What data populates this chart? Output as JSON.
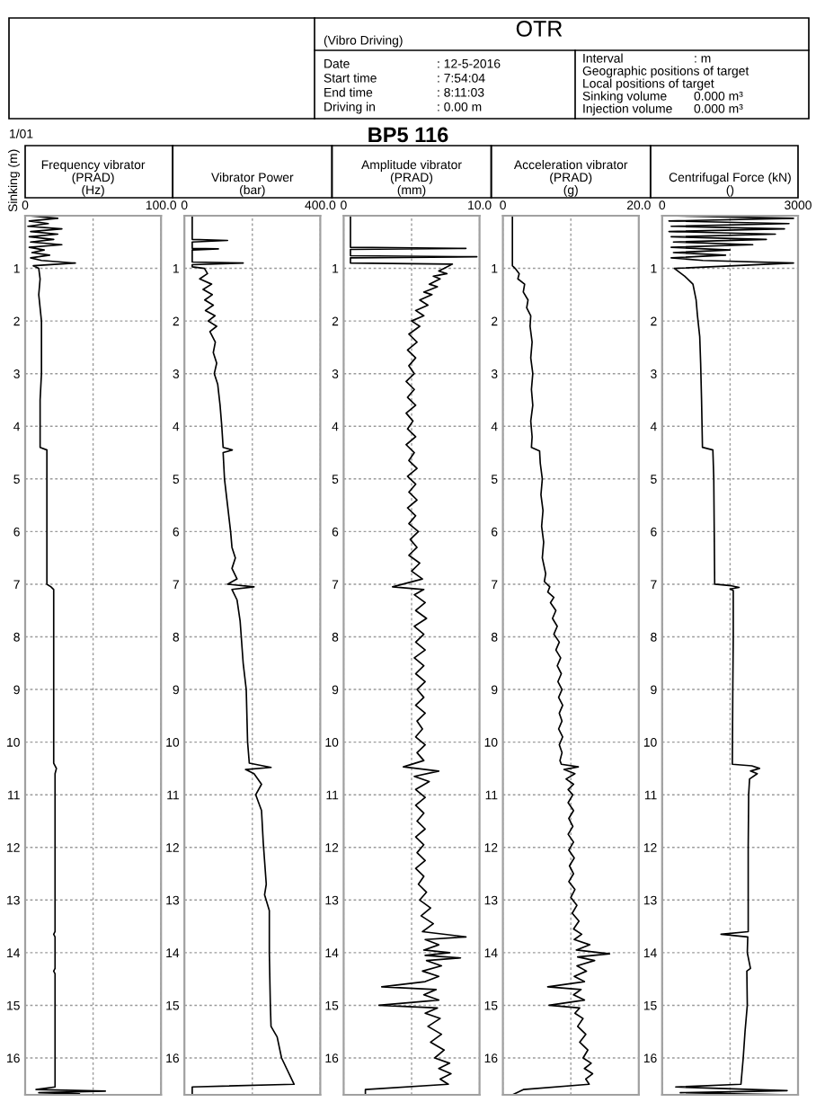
{
  "chart_data": [
    {
      "type": "line",
      "annotations": [
        "(Vibro Driving)",
        "OTR",
        "Date",
        ": 12-5-2016",
        "Start time",
        ": 7:54:04",
        "End time",
        ": 8:11:03",
        "Driving in",
        ": 0.00 m",
        "Interval",
        ": m",
        "Geographic positions of target",
        "Local positions of target",
        "Sinking volume",
        "0.000 m³",
        "Injection volume",
        "0.000 m³",
        "1/01",
        "BP5 116"
      ],
      "xlabel": "Frequency vibrator\n(PRAD)\n(Hz)",
      "ylabel": "Sinking (m)",
      "xlim": [
        0,
        100
      ],
      "xticks": [
        0,
        {
          "value": 50,
          "label": null
        },
        {
          "value": 100,
          "label": "100.0"
        }
      ],
      "ylim": [
        16.7,
        0
      ],
      "yticks": [
        1,
        2,
        3,
        4,
        5,
        6,
        7,
        8,
        9,
        10,
        11,
        12,
        13,
        14,
        15,
        16
      ],
      "grid": true,
      "series": [
        {
          "color": "#000000",
          "x": [
            2,
            24,
            3,
            17,
            2,
            27,
            4,
            24,
            3,
            21,
            4,
            27,
            3,
            14,
            5,
            18,
            4,
            12,
            37,
            6,
            10,
            11,
            10,
            12,
            12,
            11,
            11,
            16,
            16,
            16,
            19,
            21,
            21,
            21,
            21,
            23,
            22,
            22,
            21,
            22,
            22,
            21,
            22,
            22,
            8,
            59,
            10,
            40,
            8
          ],
          "values": [
            0,
            0.05,
            0.1,
            0.15,
            0.2,
            0.25,
            0.3,
            0.35,
            0.4,
            0.45,
            0.5,
            0.55,
            0.6,
            0.65,
            0.7,
            0.75,
            0.8,
            0.85,
            0.9,
            0.95,
            1.0,
            1.2,
            1.5,
            2.0,
            3.0,
            3.5,
            4.4,
            4.45,
            5.5,
            7.0,
            7.05,
            7.1,
            8.0,
            9.0,
            10.4,
            10.5,
            10.6,
            13.6,
            13.65,
            13.7,
            14.3,
            14.35,
            14.4,
            16.55,
            16.6,
            16.63,
            16.66,
            16.68,
            16.7
          ]
        }
      ]
    },
    {
      "type": "line",
      "xlabel": "Vibrator Power\n(bar)",
      "xlim": [
        0,
        400
      ],
      "xticks": [
        0,
        {
          "value": 200,
          "label": null
        },
        {
          "value": 400,
          "label": "400.0"
        }
      ],
      "ylim": [
        16.7,
        0
      ],
      "yticks": [
        1,
        2,
        3,
        4,
        5,
        6,
        7,
        8,
        9,
        10,
        11,
        12,
        13,
        14,
        15,
        16
      ],
      "grid": true,
      "series": [
        {
          "color": "#000000",
          "x": [
            23,
            23,
            127,
            23,
            23,
            100,
            23,
            23,
            173,
            23,
            23,
            59,
            68,
            45,
            80,
            55,
            82,
            60,
            85,
            62,
            90,
            70,
            95,
            75,
            91,
            85,
            95,
            88,
            98,
            105,
            110,
            114,
            141,
            114,
            118,
            127,
            136,
            140,
            150,
            140,
            155,
            127,
            205,
            140,
            155,
            164,
            173,
            182,
            186,
            191,
            255,
            180,
            205,
            227,
            210,
            227,
            232,
            241,
            236,
            250,
            250,
            253,
            255,
            273,
            286,
            323,
            23,
            23
          ],
          "values": [
            0,
            0.45,
            0.47,
            0.5,
            0.62,
            0.63,
            0.65,
            0.88,
            0.9,
            0.93,
            0.97,
            1.0,
            1.1,
            1.2,
            1.3,
            1.4,
            1.5,
            1.6,
            1.7,
            1.8,
            1.9,
            2.0,
            2.1,
            2.2,
            2.4,
            2.6,
            2.8,
            3.0,
            3.2,
            3.6,
            4.0,
            4.4,
            4.45,
            4.5,
            5.0,
            5.5,
            6.0,
            6.3,
            6.5,
            6.7,
            6.9,
            7.0,
            7.05,
            7.1,
            7.3,
            7.7,
            8.5,
            9.0,
            10.0,
            10.4,
            10.48,
            10.52,
            10.6,
            10.8,
            11.0,
            11.3,
            11.9,
            12.7,
            12.9,
            13.2,
            14.0,
            15.0,
            15.4,
            15.6,
            16.0,
            16.5,
            16.55,
            16.7
          ]
        }
      ]
    },
    {
      "type": "line",
      "xlabel": "Amplitude vibrator\n(PRAD)\n(mm)",
      "xlim": [
        0,
        10
      ],
      "xticks": [
        0,
        {
          "value": 5,
          "label": null
        },
        {
          "value": 10,
          "label": "10.0"
        }
      ],
      "ylim": [
        16.7,
        0
      ],
      "yticks": [
        1,
        2,
        3,
        4,
        5,
        6,
        7,
        8,
        9,
        10,
        11,
        12,
        13,
        14,
        15,
        16
      ],
      "grid": true,
      "series": [
        {
          "color": "#000000",
          "x": [
            0.5,
            0.5,
            9.0,
            0.5,
            0.5,
            9.8,
            0.5,
            0.5,
            8.0,
            7.4,
            7.0,
            7.6,
            6.6,
            7.1,
            6.3,
            6.9,
            5.9,
            6.5,
            5.6,
            6.2,
            5.3,
            5.9,
            5.0,
            5.6,
            4.8,
            5.4,
            4.7,
            5.3,
            4.8,
            5.2,
            4.6,
            5.2,
            4.7,
            5.3,
            4.6,
            5.1,
            4.7,
            5.3,
            4.6,
            5.2,
            4.8,
            5.4,
            4.7,
            5.3,
            4.8,
            5.4,
            4.7,
            5.3,
            4.8,
            5.5,
            4.9,
            5.4,
            4.8,
            5.6,
            5.0,
            5.8,
            3.6,
            5.9,
            5.2,
            6.0,
            5.3,
            6.1,
            5.2,
            5.9,
            5.3,
            6.0,
            5.2,
            5.9,
            5.3,
            6.0,
            5.4,
            5.9,
            5.3,
            6.0,
            5.4,
            5.8,
            5.3,
            6.0,
            5.4,
            5.9,
            4.4,
            7.0,
            5.2,
            6.3,
            5.3,
            6.0,
            5.3,
            5.9,
            5.4,
            6.0,
            5.3,
            5.9,
            5.4,
            6.0,
            5.3,
            5.9,
            5.5,
            6.1,
            5.6,
            6.4,
            5.7,
            6.6,
            5.8,
            9.0,
            6.0,
            7.0,
            5.9,
            7.8,
            6.0,
            8.6,
            6.1,
            7.2,
            5.8,
            7.0,
            6.0,
            2.8,
            6.8,
            5.9,
            7.0,
            2.6,
            6.9,
            6.0,
            7.1,
            6.2,
            7.2,
            6.4,
            7.4,
            6.7,
            7.8,
            7.0,
            7.9,
            7.1,
            7.7,
            1.6,
            1.6
          ],
          "values": [
            0,
            0.6,
            0.62,
            0.64,
            0.76,
            0.78,
            0.8,
            0.9,
            0.92,
            1.0,
            1.05,
            1.1,
            1.15,
            1.2,
            1.3,
            1.35,
            1.45,
            1.5,
            1.6,
            1.7,
            1.8,
            1.9,
            2.0,
            2.1,
            2.25,
            2.4,
            2.55,
            2.7,
            2.85,
            3.0,
            3.15,
            3.3,
            3.45,
            3.6,
            3.75,
            3.9,
            4.05,
            4.2,
            4.35,
            4.5,
            4.65,
            4.8,
            4.95,
            5.1,
            5.25,
            5.4,
            5.55,
            5.7,
            5.85,
            6.0,
            6.15,
            6.3,
            6.45,
            6.6,
            6.75,
            6.9,
            7.05,
            7.1,
            7.2,
            7.35,
            7.5,
            7.65,
            7.8,
            7.95,
            8.1,
            8.25,
            8.4,
            8.55,
            8.7,
            8.85,
            9.0,
            9.15,
            9.3,
            9.45,
            9.6,
            9.75,
            9.9,
            10.05,
            10.2,
            10.35,
            10.47,
            10.55,
            10.65,
            10.75,
            10.9,
            11.05,
            11.2,
            11.35,
            11.5,
            11.65,
            11.8,
            11.95,
            12.1,
            12.25,
            12.4,
            12.55,
            12.7,
            12.85,
            13.0,
            13.15,
            13.3,
            13.45,
            13.6,
            13.7,
            13.75,
            13.85,
            13.95,
            14.0,
            14.05,
            14.1,
            14.15,
            14.25,
            14.35,
            14.45,
            14.55,
            14.65,
            14.7,
            14.8,
            14.9,
            15.0,
            15.05,
            15.15,
            15.25,
            15.4,
            15.55,
            15.7,
            15.85,
            16.0,
            16.1,
            16.2,
            16.3,
            16.4,
            16.5,
            16.6,
            16.7
          ]
        }
      ]
    },
    {
      "type": "line",
      "xlabel": "Acceleration vibrator\n(PRAD)\n(g)",
      "xlim": [
        0,
        20
      ],
      "xticks": [
        0,
        {
          "value": 10,
          "label": null
        },
        {
          "value": 20,
          "label": "20.0"
        }
      ],
      "ylim": [
        16.7,
        0
      ],
      "yticks": [
        1,
        2,
        3,
        4,
        5,
        6,
        7,
        8,
        9,
        10,
        11,
        12,
        13,
        14,
        15,
        16
      ],
      "grid": true,
      "series": [
        {
          "color": "#000000",
          "x": [
            1.4,
            1.4,
            1.8,
            2.4,
            2.2,
            3.2,
            3.0,
            3.7,
            3.5,
            4.1,
            4.0,
            4.3,
            4.1,
            4.4,
            4.2,
            4.4,
            4.1,
            4.3,
            4.2,
            5.4,
            5.5,
            5.8,
            5.6,
            5.9,
            5.7,
            6.0,
            5.8,
            6.3,
            6.1,
            6.9,
            6.6,
            7.5,
            7.0,
            7.8,
            7.3,
            8.0,
            7.5,
            8.3,
            7.8,
            8.5,
            8.0,
            8.6,
            8.1,
            8.7,
            8.2,
            8.8,
            8.3,
            8.7,
            8.2,
            8.8,
            8.3,
            8.7,
            8.4,
            8.6,
            11.1,
            9.0,
            10.6,
            9.3,
            10.4,
            9.6,
            10.3,
            9.6,
            10.4,
            9.7,
            10.3,
            9.6,
            10.4,
            9.7,
            10.5,
            9.8,
            10.4,
            9.7,
            10.6,
            10.0,
            10.9,
            10.2,
            11.2,
            10.4,
            11.6,
            10.5,
            12.8,
            10.8,
            15.7,
            11.0,
            13.5,
            10.9,
            12.3,
            10.5,
            12.0,
            6.6,
            11.5,
            10.4,
            12.0,
            6.8,
            11.3,
            10.6,
            11.8,
            11.0,
            12.2,
            11.3,
            12.5,
            11.8,
            13.0,
            12.0,
            13.2,
            12.2,
            12.7,
            3.0,
            1.4
          ],
          "values": [
            0,
            0.95,
            1.0,
            1.1,
            1.2,
            1.3,
            1.45,
            1.6,
            1.75,
            1.9,
            2.1,
            2.4,
            2.7,
            3.0,
            3.3,
            3.6,
            3.9,
            4.2,
            4.4,
            4.47,
            4.7,
            5.0,
            5.3,
            5.6,
            5.9,
            6.2,
            6.5,
            6.8,
            6.95,
            7.05,
            7.15,
            7.25,
            7.35,
            7.5,
            7.65,
            7.8,
            7.95,
            8.1,
            8.25,
            8.4,
            8.55,
            8.7,
            8.85,
            9.0,
            9.15,
            9.3,
            9.45,
            9.6,
            9.75,
            9.9,
            10.05,
            10.2,
            10.35,
            10.42,
            10.47,
            10.52,
            10.6,
            10.7,
            10.8,
            10.9,
            11.0,
            11.15,
            11.3,
            11.45,
            11.6,
            11.75,
            11.9,
            12.05,
            12.2,
            12.35,
            12.5,
            12.65,
            12.8,
            12.95,
            13.1,
            13.25,
            13.4,
            13.55,
            13.65,
            13.75,
            13.85,
            13.95,
            14.02,
            14.08,
            14.15,
            14.25,
            14.35,
            14.45,
            14.55,
            14.65,
            14.7,
            14.8,
            14.9,
            15.0,
            15.05,
            15.15,
            15.25,
            15.4,
            15.55,
            15.7,
            15.85,
            16.0,
            16.1,
            16.2,
            16.3,
            16.4,
            16.5,
            16.6,
            16.7
          ]
        }
      ]
    },
    {
      "type": "line",
      "xlabel": "Centrifugal Force (kN)\n()",
      "xlim": [
        0,
        3000
      ],
      "xticks": [
        0,
        {
          "value": 1500,
          "label": null
        },
        3000
      ],
      "ylim": [
        16.7,
        0
      ],
      "yticks": [
        1,
        2,
        3,
        4,
        5,
        6,
        7,
        8,
        9,
        10,
        11,
        12,
        13,
        14,
        15,
        16
      ],
      "grid": true,
      "series": [
        {
          "color": "#000000",
          "x": [
            100,
            2900,
            150,
            2800,
            200,
            2700,
            150,
            2500,
            200,
            2300,
            250,
            2000,
            200,
            1500,
            250,
            1400,
            200,
            900,
            2900,
            270,
            500,
            680,
            750,
            780,
            830,
            850,
            870,
            890,
            1120,
            1140,
            1150,
            1160,
            1530,
            1700,
            1500,
            1570,
            1570,
            1560,
            1550,
            1980,
            2150,
            1950,
            2100,
            1930,
            1910,
            1900,
            1900,
            1300,
            1890,
            1880,
            1950,
            1870,
            1880,
            1830,
            1790,
            1740,
            300,
            2760,
            400,
            2900
          ],
          "values": [
            0,
            0.05,
            0.1,
            0.15,
            0.2,
            0.25,
            0.3,
            0.35,
            0.4,
            0.45,
            0.5,
            0.55,
            0.6,
            0.65,
            0.7,
            0.75,
            0.8,
            0.85,
            0.9,
            1.0,
            1.15,
            1.3,
            1.6,
            1.9,
            2.3,
            2.8,
            3.5,
            4.4,
            4.45,
            5.0,
            6.0,
            7.0,
            7.03,
            7.06,
            7.09,
            7.12,
            8.0,
            9.0,
            10.42,
            10.45,
            10.5,
            10.55,
            10.6,
            10.7,
            11.0,
            12.0,
            13.6,
            13.65,
            13.7,
            14.0,
            14.3,
            14.35,
            15.0,
            15.5,
            16.0,
            16.5,
            16.55,
            16.62,
            16.66,
            16.7
          ]
        }
      ]
    }
  ]
}
